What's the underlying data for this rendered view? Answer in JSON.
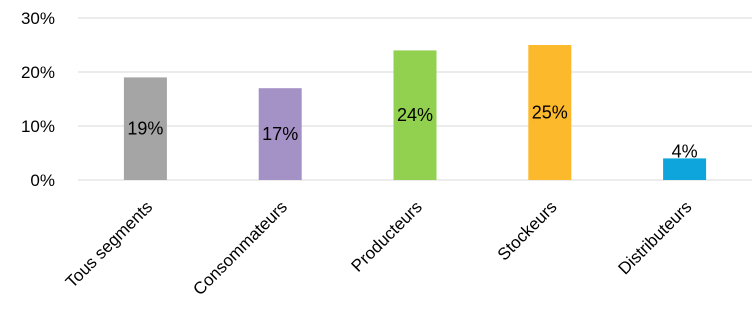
{
  "chart_data": {
    "type": "bar",
    "title": "",
    "xlabel": "",
    "ylabel": "",
    "categories": [
      "Tous segments",
      "Consommateurs",
      "Producteurs",
      "Stockeurs",
      "Distributeurs"
    ],
    "values": [
      19,
      17,
      24,
      25,
      4
    ],
    "data_labels": [
      "19%",
      "17%",
      "24%",
      "25%",
      "4%"
    ],
    "colors": [
      "#A5A5A5",
      "#A491C5",
      "#92D050",
      "#FDB92C",
      "#0EA5DD"
    ],
    "ylim": [
      0,
      30
    ],
    "y_ticks": [
      0,
      10,
      20,
      30
    ],
    "y_tick_labels": [
      "0%",
      "10%",
      "20%",
      "30%"
    ],
    "grid": true,
    "legend": "none"
  }
}
